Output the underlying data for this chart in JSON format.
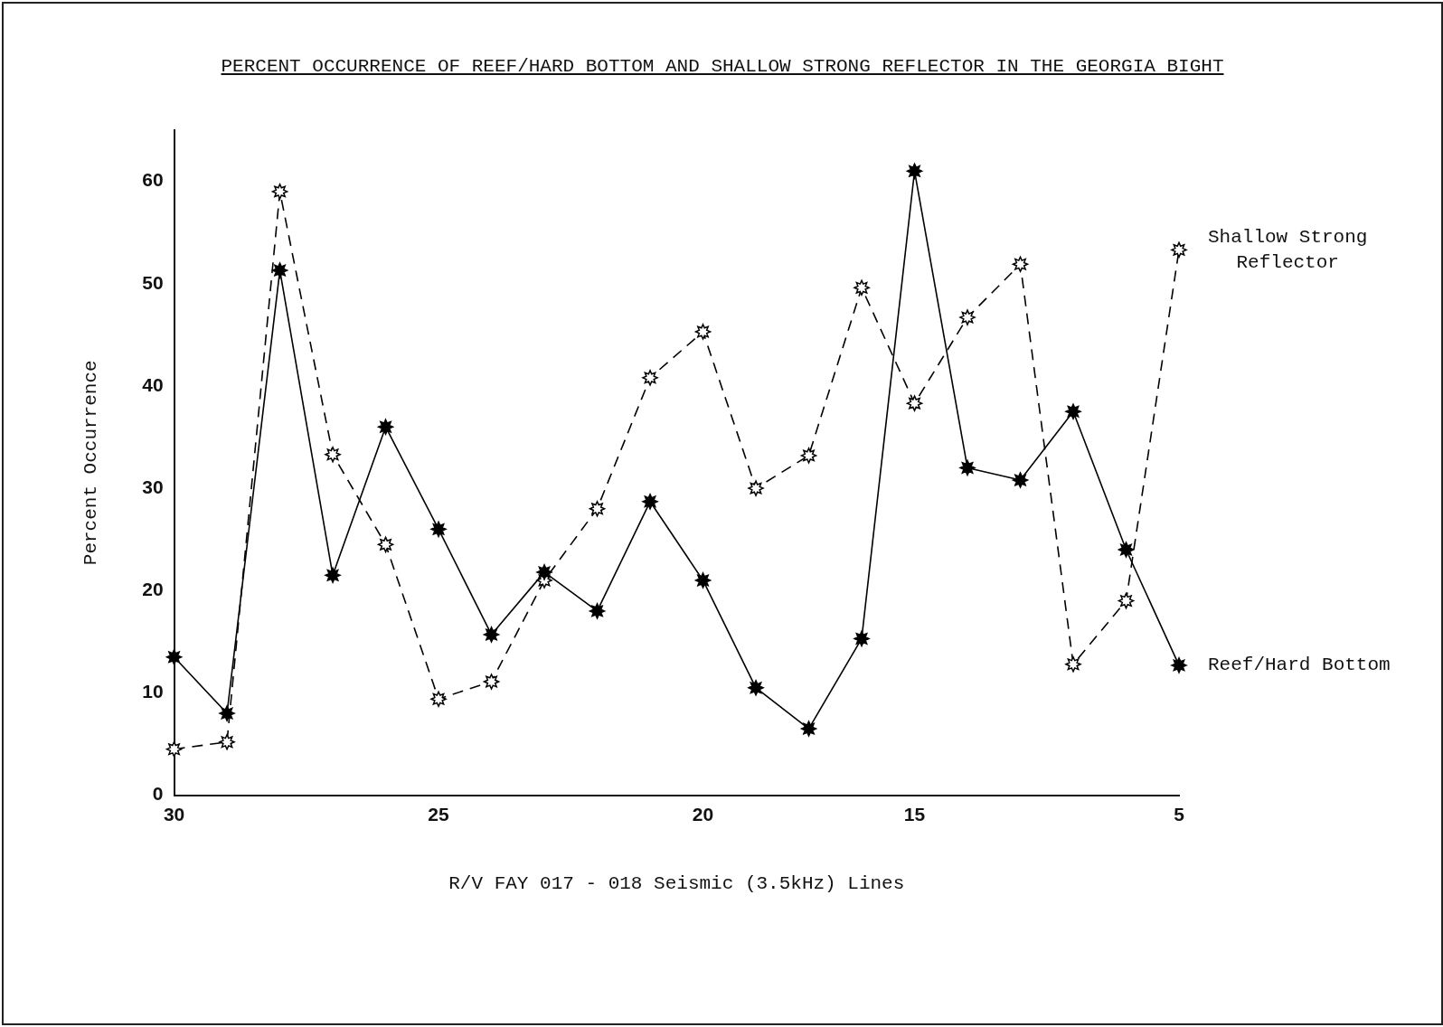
{
  "chart_data": {
    "type": "line",
    "title": "PERCENT OCCURRENCE OF REEF/HARD BOTTOM AND SHALLOW STRONG REFLECTOR IN THE GEORGIA BIGHT",
    "xlabel": "R/V FAY 017 - 018 Seismic (3.5kHz) Lines",
    "ylabel": "Percent Occurrence",
    "categories": [
      "30",
      null,
      null,
      null,
      null,
      "25",
      null,
      null,
      null,
      null,
      "20",
      null,
      null,
      null,
      "15",
      null,
      null,
      null,
      null,
      "5"
    ],
    "series": [
      {
        "name": "Shallow Strong Reflector",
        "color": "#000000",
        "line_style": "dashed",
        "values": [
          4.5,
          5.2,
          59,
          33.3,
          24.5,
          9.4,
          11.1,
          21,
          28,
          40.8,
          45.3,
          30,
          33.2,
          49.6,
          38.3,
          46.7,
          51.9,
          12.8,
          19,
          53.3
        ]
      },
      {
        "name": "Reef/Hard Bottom",
        "color": "#000000",
        "line_style": "solid",
        "values": [
          13.5,
          8,
          51.3,
          21.5,
          36,
          26,
          15.7,
          21.8,
          18,
          28.7,
          21,
          10.5,
          6.5,
          15.3,
          61,
          32,
          30.8,
          37.5,
          24,
          12.7
        ]
      }
    ],
    "ylim": [
      0,
      65
    ],
    "yticks": [
      0,
      10,
      20,
      30,
      40,
      50,
      60
    ],
    "grid": false,
    "legend": false,
    "marker": "star"
  }
}
